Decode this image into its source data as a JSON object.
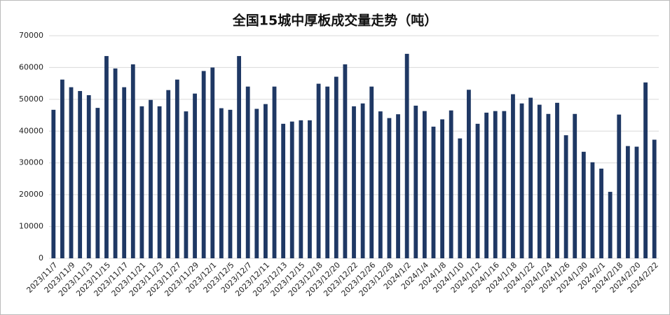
{
  "chart_data": {
    "type": "bar",
    "title": "全国15城中厚板成交量走势（吨）",
    "categories": [
      "2023/11/7",
      null,
      "2023/11/9",
      null,
      "2023/11/13",
      null,
      "2023/11/15",
      null,
      "2023/11/17",
      null,
      "2023/11/21",
      null,
      "2023/11/23",
      null,
      "2023/11/27",
      null,
      "2023/11/29",
      null,
      "2023/12/1",
      null,
      "2023/12/5",
      null,
      "2023/12/7",
      null,
      "2023/12/11",
      null,
      "2023/12/13",
      null,
      "2023/12/15",
      null,
      "2023/12/18",
      null,
      "2023/12/20",
      null,
      "2023/12/22",
      null,
      "2023/12/26",
      null,
      "2023/12/28",
      null,
      "2024/1/2",
      null,
      "2024/1/4",
      null,
      "2024/1/8",
      null,
      "2024/1/10",
      null,
      "2024/1/12",
      null,
      "2024/1/16",
      null,
      "2024/1/18",
      null,
      "2024/1/22",
      null,
      "2024/1/24",
      null,
      "2024/1/26",
      null,
      "2024/1/30",
      null,
      "2024/2/1",
      null,
      "2024/2/18",
      null,
      "2024/2/20",
      null,
      "2024/2/22"
    ],
    "values": [
      46700,
      56200,
      53800,
      52600,
      51300,
      47300,
      63600,
      59700,
      53800,
      61000,
      47800,
      49800,
      47800,
      52900,
      56200,
      46200,
      51800,
      58900,
      60000,
      47200,
      46700,
      63600,
      54000,
      47000,
      48500,
      54000,
      42300,
      43000,
      43400,
      43400,
      54900,
      54000,
      57100,
      61000,
      47800,
      48700,
      54000,
      46200,
      44100,
      45300,
      64300,
      48000,
      46300,
      41400,
      43700,
      46500,
      37700,
      53000,
      42300,
      45800,
      46300,
      46300,
      51600,
      48700,
      50500,
      48300,
      45400,
      48900,
      38700,
      45400,
      33500,
      30200,
      28200,
      20900,
      45200,
      35300,
      35100,
      55300,
      37300
    ],
    "color": "#1f3864",
    "ylim": [
      0,
      70000
    ],
    "yticks": [
      0,
      10000,
      20000,
      30000,
      40000,
      50000,
      60000,
      70000
    ],
    "grid": true
  }
}
